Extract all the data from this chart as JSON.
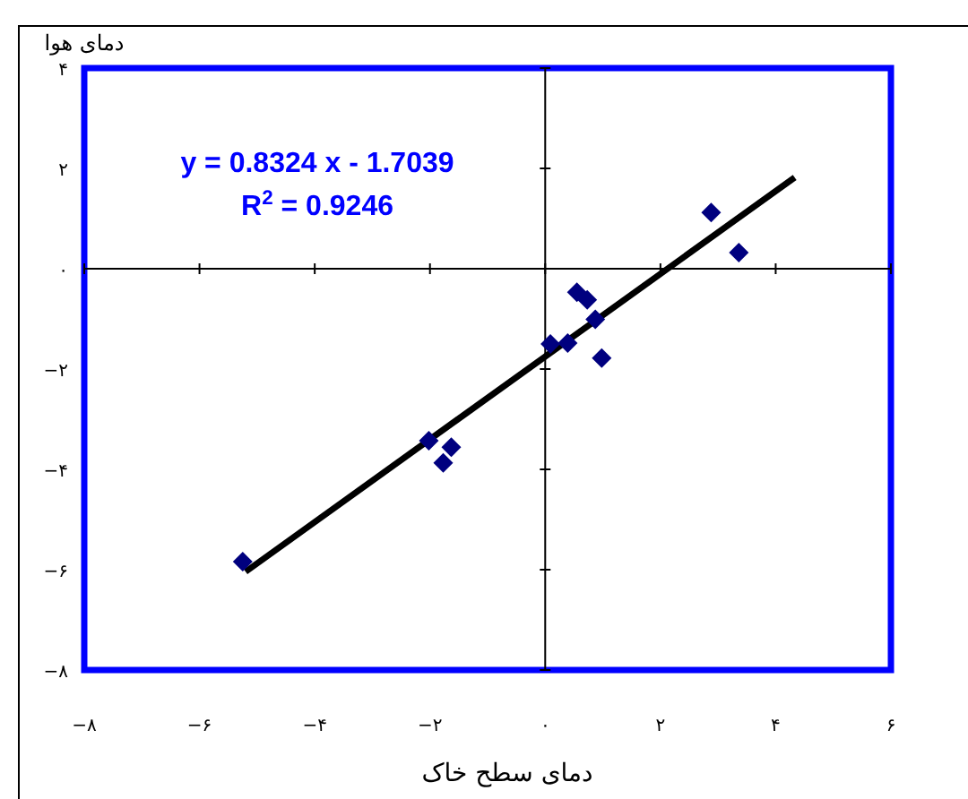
{
  "chart_data": {
    "type": "scatter",
    "xlabel": "دمای سطح خاک",
    "ylabel": "دمای هوا",
    "annotations": [
      "y = 0.8324  x - 1.7039",
      "R$^{2}$ = 0.9246"
    ],
    "xlim": [
      -8,
      6
    ],
    "ylim": [
      -8,
      4
    ],
    "xticks": [
      {
        "value": -8,
        "label": "−۸"
      },
      {
        "value": -6,
        "label": "−۶"
      },
      {
        "value": -4,
        "label": "−۴"
      },
      {
        "value": -2,
        "label": "−۲"
      },
      {
        "value": 0,
        "label": "۰"
      },
      {
        "value": 2,
        "label": "۲"
      },
      {
        "value": 4,
        "label": "۴"
      },
      {
        "value": 6,
        "label": "۶"
      }
    ],
    "yticks": [
      {
        "value": -8,
        "label": "−۸"
      },
      {
        "value": -6,
        "label": "−۶"
      },
      {
        "value": -4,
        "label": "−۴"
      },
      {
        "value": -2,
        "label": "−۲"
      },
      {
        "value": 0,
        "label": "۰"
      },
      {
        "value": 2,
        "label": "۲"
      },
      {
        "value": 4,
        "label": "۴"
      }
    ],
    "marker": "diamond",
    "series": [
      {
        "color": "#00007f",
        "x": [
          -5.25,
          -2.02,
          -1.63,
          -1.77,
          0.09,
          0.39,
          0.55,
          0.73,
          0.87,
          0.98,
          2.88,
          3.36
        ],
        "values": [
          -5.84,
          -3.43,
          -3.56,
          -3.87,
          -1.5,
          -1.48,
          -0.47,
          -0.62,
          -1.01,
          -1.78,
          1.12,
          0.32
        ]
      },
      {
        "type": "line",
        "marker": "none",
        "line_style": "solid",
        "color": "#000000",
        "x": [
          -5.2,
          4.33
        ],
        "values": [
          -6.04,
          1.82
        ]
      }
    ]
  }
}
